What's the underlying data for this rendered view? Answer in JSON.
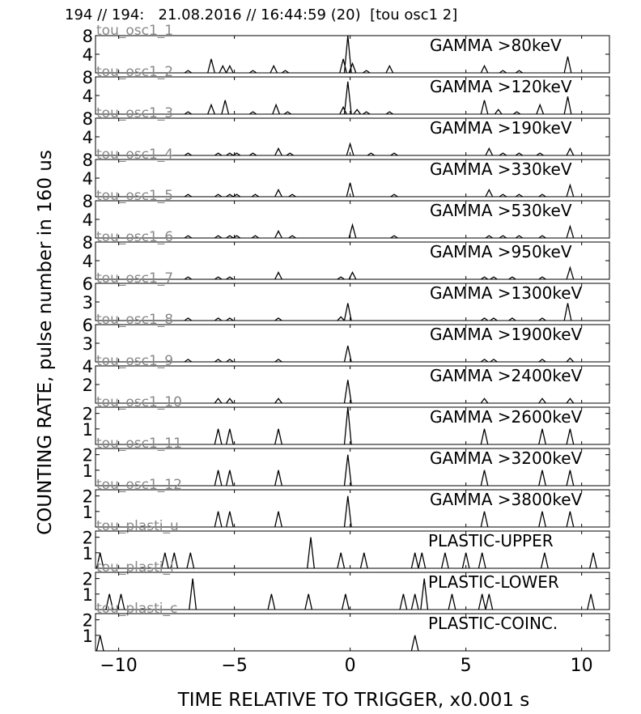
{
  "header": "194 // 194:   21.08.2016 // 16:44:59 (20)  [tou osc1 2]",
  "chart_data": {
    "type": "line",
    "xlabel": "TIME RELATIVE TO TRIGGER,   x0.001 s",
    "ylabel": "COUNTING RATE,    pulse number in 160 us",
    "xlim": [
      -11,
      11.2
    ],
    "xticks": [
      -10,
      -5,
      0,
      5,
      10
    ],
    "xtick_labels": [
      "−10",
      "−5",
      "0",
      "5",
      "10"
    ],
    "grid": false,
    "panels": [
      {
        "channel": "tou_osc1_1",
        "label": "GAMMA >80keV",
        "ylim": [
          0,
          8
        ],
        "yticks": [
          4,
          8
        ],
        "x": [
          -11,
          -7,
          -6,
          -5.5,
          -5.2,
          -4.2,
          -3.3,
          -2.8,
          -0.3,
          -0.1,
          0.1,
          0.7,
          1.7,
          5.8,
          6.6,
          7.3,
          9.4
        ],
        "y": [
          0,
          0.5,
          3,
          1.5,
          1.5,
          0.5,
          1.5,
          0.5,
          3,
          8,
          2,
          0.5,
          1.5,
          1.5,
          0.5,
          0.5,
          3.5
        ]
      },
      {
        "channel": "tou_osc1_2",
        "label": "GAMMA >120keV",
        "ylim": [
          0,
          8
        ],
        "yticks": [
          4,
          8
        ],
        "x": [
          -11,
          -7,
          -6,
          -5.4,
          -4.2,
          -3.2,
          -2.7,
          -0.3,
          -0.1,
          0.3,
          0.7,
          1.7,
          5.8,
          6.4,
          7.2,
          8.2,
          9.4
        ],
        "y": [
          0,
          0.5,
          2,
          3,
          0.5,
          2,
          0.5,
          1.5,
          7,
          1,
          0.5,
          0.5,
          3,
          1,
          0.5,
          2,
          3.8
        ]
      },
      {
        "channel": "tou_osc1_3",
        "label": "GAMMA >190keV",
        "ylim": [
          0,
          8
        ],
        "yticks": [
          4,
          8
        ],
        "x": [
          -11,
          -7,
          -5.7,
          -5.2,
          -4.9,
          -4.2,
          -3.1,
          -2.6,
          0,
          0.9,
          1.9,
          6.0,
          6.6,
          7.3,
          8.2,
          9.5
        ],
        "y": [
          0,
          0.5,
          0.5,
          0.5,
          0.5,
          0.5,
          1.5,
          0.5,
          2.5,
          0.5,
          0.5,
          1.5,
          0.5,
          0.5,
          0.5,
          1.5
        ]
      },
      {
        "channel": "tou_osc1_4",
        "label": "GAMMA >330keV",
        "ylim": [
          0,
          8
        ],
        "yticks": [
          4,
          8
        ],
        "x": [
          -11,
          -7,
          -5.7,
          -5.2,
          -4.9,
          -4.1,
          -3.1,
          -2.5,
          0,
          1.9,
          6.0,
          6.6,
          7.3,
          8.3,
          9.5
        ],
        "y": [
          0,
          0.5,
          0.5,
          0.5,
          0.5,
          0.5,
          1.5,
          0.5,
          3,
          0.5,
          1.5,
          0.5,
          0.5,
          0.5,
          2.5
        ]
      },
      {
        "channel": "tou_osc1_5",
        "label": "GAMMA >530keV",
        "ylim": [
          0,
          8
        ],
        "yticks": [
          4,
          8
        ],
        "x": [
          -11,
          -7,
          -5.7,
          -5.2,
          -4.9,
          -4.1,
          -3.1,
          -2.5,
          0.1,
          1.9,
          6.0,
          6.6,
          7.3,
          8.3,
          9.5
        ],
        "y": [
          0,
          0.5,
          0.5,
          0.5,
          0.5,
          0.5,
          1.5,
          0.5,
          2.8,
          0.5,
          0.5,
          0.5,
          0.5,
          0.5,
          2.5
        ]
      },
      {
        "channel": "tou_osc1_6",
        "label": "GAMMA >950keV",
        "ylim": [
          0,
          8
        ],
        "yticks": [
          4,
          8
        ],
        "x": [
          -11,
          -7,
          -5.7,
          -5.2,
          -3.1,
          -0.4,
          0.1,
          5.8,
          6.2,
          7.0,
          8.3,
          9.5
        ],
        "y": [
          0,
          0.5,
          0.5,
          0.5,
          1.5,
          0.5,
          1.5,
          0.5,
          0.5,
          0.5,
          0.5,
          2.5
        ]
      },
      {
        "channel": "tou_osc1_7",
        "label": "GAMMA >1300keV",
        "ylim": [
          0,
          6
        ],
        "yticks": [
          3,
          6
        ],
        "x": [
          -11,
          -7,
          -5.7,
          -5.2,
          -3.1,
          -0.4,
          -0.1,
          5.8,
          6.2,
          7.0,
          8.3,
          9.4
        ],
        "y": [
          0,
          0.4,
          0.4,
          0.4,
          0.4,
          0.6,
          2.8,
          0.4,
          0.4,
          0.4,
          0.4,
          2.8
        ]
      },
      {
        "channel": "tou_osc1_8",
        "label": "GAMMA >1900keV",
        "ylim": [
          0,
          6
        ],
        "yticks": [
          3,
          6
        ],
        "x": [
          -11,
          -7,
          -5.7,
          -5.2,
          -3.1,
          -0.1,
          5.8,
          6.2,
          8.3,
          9.5
        ],
        "y": [
          0,
          0.4,
          0.4,
          0.4,
          0.4,
          2.6,
          0.4,
          0.4,
          0.4,
          0.6
        ]
      },
      {
        "channel": "tou_osc1_9",
        "label": "GAMMA >2400keV",
        "ylim": [
          0,
          4
        ],
        "yticks": [
          2,
          4
        ],
        "x": [
          -11,
          -5.7,
          -5.2,
          -3.1,
          -0.1,
          5.8,
          8.3,
          9.5
        ],
        "y": [
          0,
          0.5,
          0.5,
          0.5,
          2.5,
          0.5,
          0.5,
          0.5
        ]
      },
      {
        "channel": "tou_osc1_10",
        "label": "GAMMA >2600keV",
        "ylim": [
          0,
          2.4
        ],
        "yticks": [
          1,
          2
        ],
        "x": [
          -11,
          -5.7,
          -5.2,
          -3.1,
          -0.1,
          5.8,
          8.3,
          9.5
        ],
        "y": [
          0,
          1,
          1,
          1,
          2.4,
          1,
          1,
          1
        ]
      },
      {
        "channel": "tou_osc1_11",
        "label": "GAMMA >3200keV",
        "ylim": [
          0,
          2.4
        ],
        "yticks": [
          1,
          2
        ],
        "x": [
          -11,
          -5.7,
          -5.2,
          -3.1,
          -0.1,
          5.8,
          8.3,
          9.5
        ],
        "y": [
          0,
          1,
          1,
          1,
          2,
          1,
          1,
          1
        ]
      },
      {
        "channel": "tou_osc1_12",
        "label": "GAMMA >3800keV",
        "ylim": [
          0,
          2.4
        ],
        "yticks": [
          1,
          2
        ],
        "x": [
          -11,
          -5.7,
          -5.2,
          -3.1,
          -0.1,
          5.8,
          8.3,
          9.5
        ],
        "y": [
          0,
          1,
          1,
          1,
          2,
          1,
          1,
          1
        ]
      },
      {
        "channel": "tou_plasti_u",
        "label": "PLASTIC-UPPER",
        "ylim": [
          0,
          2.4
        ],
        "yticks": [
          1,
          2
        ],
        "x": [
          -10.8,
          -8.0,
          -7.6,
          -6.9,
          -1.7,
          -0.4,
          0.6,
          2.8,
          3.1,
          4.1,
          5.0,
          5.7,
          8.4,
          10.5
        ],
        "y": [
          1,
          1,
          1,
          1,
          2,
          1,
          1,
          1,
          1,
          1,
          1,
          1,
          1,
          1
        ]
      },
      {
        "channel": "tou_plasti_l",
        "label": "PLASTIC-LOWER",
        "ylim": [
          0,
          2.4
        ],
        "yticks": [
          1,
          2
        ],
        "x": [
          -10.4,
          -9.9,
          -6.8,
          -3.4,
          -1.8,
          -0.2,
          2.3,
          2.8,
          3.2,
          4.4,
          5.7,
          6.0,
          10.4
        ],
        "y": [
          1,
          1,
          2,
          1,
          1,
          1,
          1,
          1,
          2,
          1,
          1,
          1,
          1
        ]
      },
      {
        "channel": "tou_plasti_c",
        "label": "PLASTIC-COINC.",
        "ylim": [
          0,
          2.4
        ],
        "yticks": [
          1,
          2
        ],
        "x": [
          -10.8,
          2.8
        ],
        "y": [
          1,
          1
        ]
      }
    ]
  }
}
